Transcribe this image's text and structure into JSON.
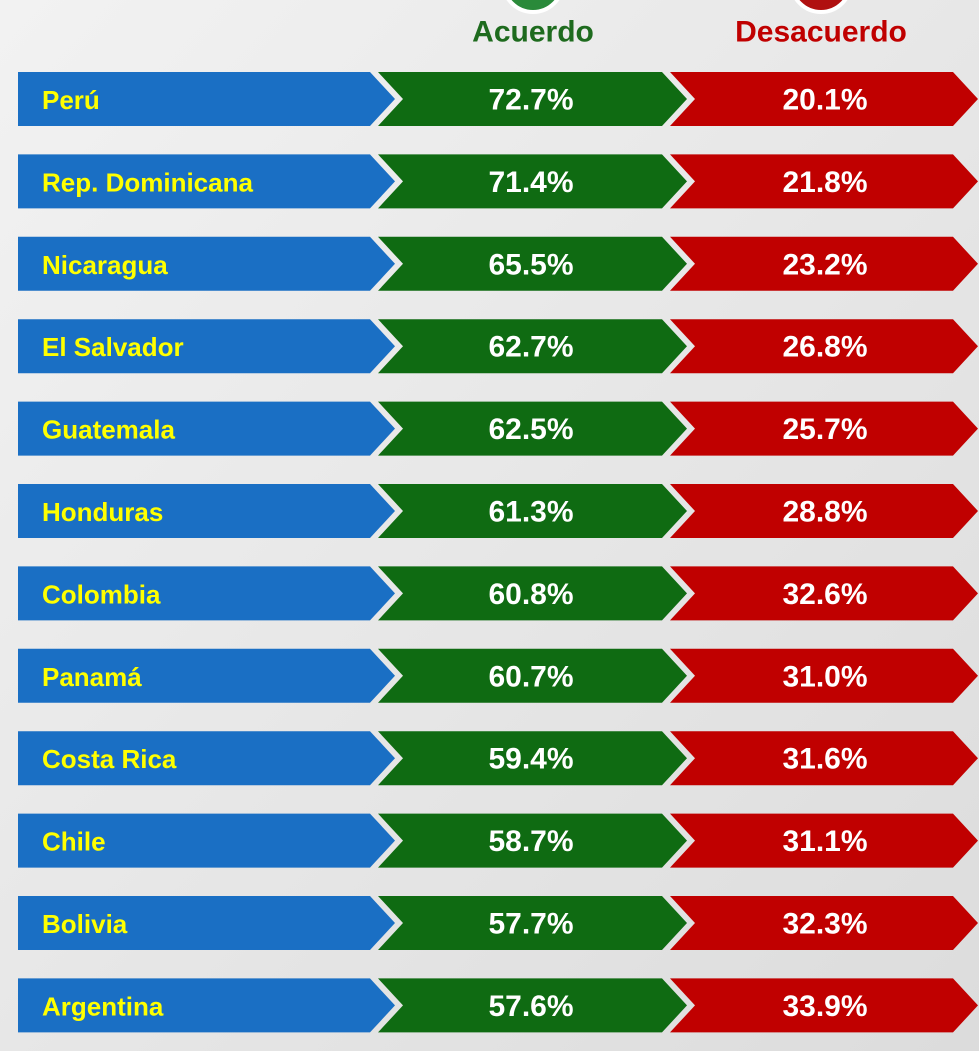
{
  "header": {
    "agree": "Acuerdo",
    "disagree": "Desacuerdo"
  },
  "table": {
    "rows": [
      [
        "Perú",
        "72.7%",
        "20.1%"
      ],
      [
        "Rep. Dominicana",
        "71.4%",
        "21.8%"
      ],
      [
        "Nicaragua",
        "65.5%",
        "23.2%"
      ],
      [
        "El Salvador",
        "62.7%",
        "26.8%"
      ],
      [
        "Guatemala",
        "62.5%",
        "25.7%"
      ],
      [
        "Honduras",
        "61.3%",
        "28.8%"
      ],
      [
        "Colombia",
        "60.8%",
        "32.6%"
      ],
      [
        "Panamá",
        "60.7%",
        "31.0%"
      ],
      [
        "Costa Rica",
        "59.4%",
        "31.6%"
      ],
      [
        "Chile",
        "58.7%",
        "31.1%"
      ],
      [
        "Bolivia",
        "57.7%",
        "32.3%"
      ],
      [
        "Argentina",
        "57.6%",
        "33.9%"
      ]
    ]
  }
}
